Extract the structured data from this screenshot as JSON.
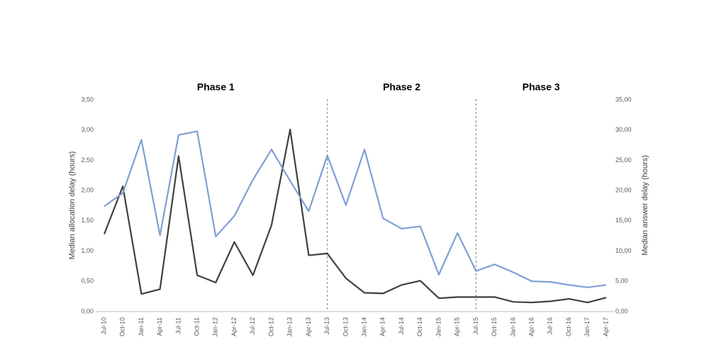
{
  "chart_data": {
    "type": "line",
    "y_label": "Median allocation delay (hours)",
    "y2_label": "Median answer delay (hours)",
    "categories": [
      "Jul-10",
      "Oct-10",
      "Jan-11",
      "Apr-11",
      "Jul-11",
      "Oct-11",
      "Jan-12",
      "Apr-12",
      "Jul-12",
      "Oct-12",
      "Jan-13",
      "Apr-13",
      "Jul-13",
      "Oct-13",
      "Jan-14",
      "Apr-14",
      "Jul-14",
      "Oct-14",
      "Jan-15",
      "Apr-15",
      "Jul-15",
      "Oct-15",
      "Jan-16",
      "Apr-16",
      "Jul-16",
      "Oct-16",
      "Jan-17",
      "Apr-17"
    ],
    "series": [
      {
        "color": "#404040",
        "values": [
          1.28,
          2.07,
          0.29,
          0.37,
          2.57,
          0.6,
          0.48,
          1.15,
          0.6,
          1.43,
          3.01,
          0.93,
          0.96,
          0.55,
          0.31,
          0.3,
          0.44,
          0.51,
          0.22,
          0.24,
          0.24,
          0.24,
          0.16,
          0.15,
          0.17,
          0.21,
          0.15,
          0.23
        ]
      },
      {
        "color": "#7f9fd4",
        "axis": "y2",
        "values": [
          17.4,
          19.6,
          28.4,
          12.6,
          29.2,
          29.8,
          12.4,
          15.8,
          21.8,
          26.8,
          21.6,
          16.6,
          25.8,
          17.6,
          26.8,
          15.4,
          13.7,
          14.1,
          6.1,
          13.0,
          6.7,
          7.8,
          6.5,
          5.0,
          4.9,
          4.4,
          4.0,
          4.4
        ]
      }
    ],
    "ylim": [
      0,
      3.5
    ],
    "yticks": [
      {
        "value": 0,
        "label": "0,00"
      },
      {
        "value": 0.5,
        "label": "0,50"
      },
      {
        "value": 1,
        "label": "1,00"
      },
      {
        "value": 1.5,
        "label": "1,50"
      },
      {
        "value": 2,
        "label": "2,00"
      },
      {
        "value": 2.5,
        "label": "2,50"
      },
      {
        "value": 3,
        "label": "3,00"
      },
      {
        "value": 3.5,
        "label": "3,50"
      }
    ],
    "y2lim": [
      0,
      35
    ],
    "y2ticks": [
      {
        "value": 0,
        "label": "0,00"
      },
      {
        "value": 5,
        "label": "5,00"
      },
      {
        "value": 10,
        "label": "10,00"
      },
      {
        "value": 15,
        "label": "15,00"
      },
      {
        "value": 20,
        "label": "20,00"
      },
      {
        "value": 25,
        "label": "25,00"
      },
      {
        "value": 30,
        "label": "30,00"
      },
      {
        "value": 35,
        "label": "35,00"
      }
    ],
    "phases": [
      {
        "label": "Phase 1",
        "start": "Jul-10"
      },
      {
        "label": "Phase 2",
        "start": "Jul-13"
      },
      {
        "label": "Phase 3",
        "start": "Jul-15"
      }
    ]
  }
}
